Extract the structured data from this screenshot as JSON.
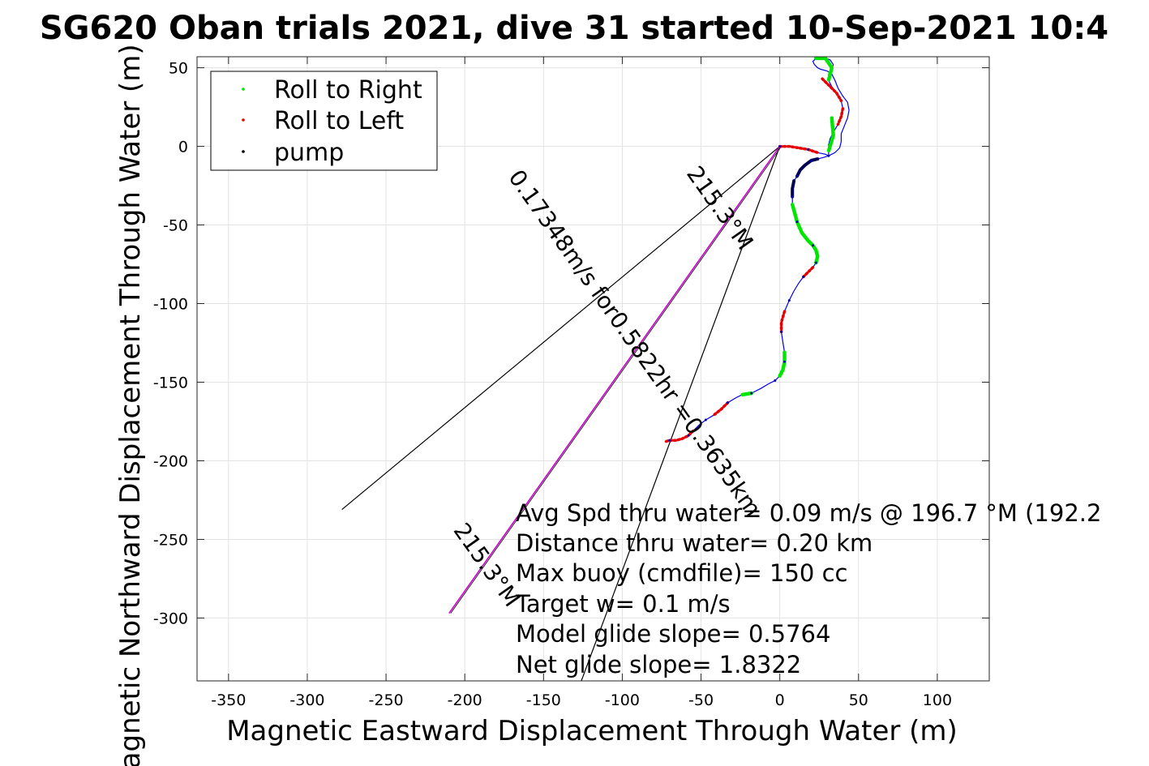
{
  "chart_data": {
    "type": "scatter",
    "title": "SG620 Oban trials 2021, dive 31 started 10-Sep-2021 10:4",
    "xlabel": "Magnetic Eastward Displacement Through Water (m)",
    "ylabel": "Magnetic Northward Displacement Through Water (m)",
    "xlim": [
      -370,
      133
    ],
    "ylim": [
      -340,
      57
    ],
    "xticks": [
      -350,
      -300,
      -250,
      -200,
      -150,
      -100,
      -50,
      0,
      50,
      100
    ],
    "yticks": [
      50,
      0,
      -50,
      -100,
      -150,
      -200,
      -250,
      -300
    ],
    "grid": true,
    "legend": {
      "placement": "top-left",
      "entries": [
        {
          "label": "Roll to Right",
          "color": "#00e600"
        },
        {
          "label": "Roll to Left",
          "color": "#e60000"
        },
        {
          "label": "pump",
          "color": "#000000"
        }
      ]
    },
    "track": [
      [
        0,
        0
      ],
      [
        6,
        0
      ],
      [
        12,
        -1
      ],
      [
        18,
        -2
      ],
      [
        24,
        -4
      ],
      [
        29,
        -5
      ],
      [
        31,
        -6
      ],
      [
        28,
        -7
      ],
      [
        24,
        -8
      ],
      [
        20,
        -9
      ],
      [
        16,
        -12
      ],
      [
        13,
        -15
      ],
      [
        11,
        -19
      ],
      [
        9,
        -22
      ],
      [
        8,
        -27
      ],
      [
        8,
        -32
      ],
      [
        8,
        -37
      ],
      [
        9,
        -42
      ],
      [
        11,
        -48
      ],
      [
        14,
        -55
      ],
      [
        18,
        -60
      ],
      [
        21,
        -63
      ],
      [
        23,
        -66
      ],
      [
        24,
        -70
      ],
      [
        23,
        -74
      ],
      [
        21,
        -77
      ],
      [
        18,
        -80
      ],
      [
        15,
        -83
      ],
      [
        12,
        -87
      ],
      [
        9,
        -92
      ],
      [
        6,
        -98
      ],
      [
        3,
        -105
      ],
      [
        1,
        -112
      ],
      [
        1,
        -118
      ],
      [
        2,
        -125
      ],
      [
        3,
        -131
      ],
      [
        3,
        -137
      ],
      [
        2,
        -142
      ],
      [
        0,
        -146
      ],
      [
        -3,
        -149
      ],
      [
        -7,
        -151
      ],
      [
        -12,
        -154
      ],
      [
        -18,
        -157
      ],
      [
        -24,
        -158
      ],
      [
        -28,
        -160
      ],
      [
        -33,
        -163
      ],
      [
        -37,
        -167
      ],
      [
        -42,
        -171
      ],
      [
        -47,
        -174
      ],
      [
        -51,
        -177
      ],
      [
        -55,
        -181
      ],
      [
        -58,
        -184
      ],
      [
        -62,
        -186
      ],
      [
        -66,
        -187
      ],
      [
        -70,
        -187
      ],
      [
        -73,
        -188
      ]
    ],
    "loop": [
      [
        31,
        -6
      ],
      [
        35,
        -4
      ],
      [
        38,
        -1
      ],
      [
        39,
        3
      ],
      [
        39,
        8
      ],
      [
        41,
        13
      ],
      [
        43,
        18
      ],
      [
        44,
        23
      ],
      [
        43,
        28
      ],
      [
        40,
        32
      ],
      [
        37,
        37
      ],
      [
        35,
        42
      ],
      [
        33,
        46
      ],
      [
        30,
        48
      ],
      [
        26,
        49
      ],
      [
        24,
        50
      ],
      [
        22,
        52
      ],
      [
        21,
        54
      ],
      [
        23,
        56
      ],
      [
        26,
        56
      ],
      [
        29,
        56
      ],
      [
        32,
        55
      ],
      [
        34,
        52
      ],
      [
        33,
        49
      ],
      [
        31,
        46
      ],
      [
        31,
        42
      ],
      [
        33,
        38
      ],
      [
        36,
        34
      ],
      [
        39,
        29
      ],
      [
        40,
        24
      ],
      [
        39,
        19
      ],
      [
        37,
        14
      ],
      [
        34,
        9
      ],
      [
        32,
        5
      ],
      [
        31,
        1
      ],
      [
        31,
        -6
      ]
    ],
    "roll_right_segments": [
      [
        [
          23,
          56
        ],
        [
          29,
          56
        ],
        [
          33,
          50
        ],
        [
          31,
          42
        ]
      ],
      [
        [
          33,
          18
        ],
        [
          34,
          7
        ],
        [
          31,
          -3
        ]
      ],
      [
        [
          8,
          -37
        ],
        [
          11,
          -48
        ],
        [
          14,
          -55
        ],
        [
          18,
          -60
        ],
        [
          21,
          -63
        ],
        [
          23,
          -66
        ],
        [
          24,
          -70
        ],
        [
          23,
          -74
        ]
      ],
      [
        [
          3,
          -131
        ],
        [
          3,
          -137
        ],
        [
          2,
          -142
        ],
        [
          0,
          -146
        ]
      ],
      [
        [
          -18,
          -157
        ],
        [
          -24,
          -158
        ]
      ]
    ],
    "roll_left_segments": [
      [
        [
          0,
          0
        ],
        [
          6,
          0
        ],
        [
          12,
          -1
        ],
        [
          18,
          -2
        ],
        [
          24,
          -4
        ]
      ],
      [
        [
          27,
          43
        ],
        [
          32,
          38
        ],
        [
          36,
          34
        ],
        [
          39,
          29
        ]
      ],
      [
        [
          40,
          24
        ],
        [
          39,
          19
        ],
        [
          37,
          14
        ]
      ],
      [
        [
          21,
          -77
        ],
        [
          18,
          -80
        ],
        [
          15,
          -83
        ]
      ],
      [
        [
          3,
          -105
        ],
        [
          1,
          -112
        ],
        [
          1,
          -118
        ]
      ],
      [
        [
          -33,
          -163
        ],
        [
          -37,
          -167
        ],
        [
          -42,
          -171
        ]
      ],
      [
        [
          -55,
          -181
        ],
        [
          -58,
          -184
        ],
        [
          -62,
          -186
        ],
        [
          -66,
          -187
        ],
        [
          -70,
          -187
        ],
        [
          -73,
          -188
        ]
      ]
    ],
    "pump_segments": [
      [
        [
          24,
          -8
        ],
        [
          20,
          -9
        ],
        [
          16,
          -12
        ],
        [
          13,
          -15
        ],
        [
          11,
          -19
        ]
      ],
      [
        [
          9,
          -22
        ],
        [
          8,
          -27
        ],
        [
          8,
          -32
        ]
      ]
    ],
    "course_line": {
      "from": [
        0,
        0
      ],
      "to": [
        -210,
        -297
      ],
      "color": "#cc00cc"
    },
    "cone_lines": [
      {
        "from": [
          0,
          0
        ],
        "to": [
          -278,
          -231
        ]
      },
      {
        "from": [
          0,
          0
        ],
        "to": [
          -126,
          -340
        ]
      }
    ],
    "rotated_labels": [
      {
        "text": "215.3°M",
        "at": [
          -42,
          -42
        ],
        "angle": 54.7
      },
      {
        "text": "0.17348m/s for0.5822hr =0.3635km",
        "at": [
          -96,
          -128
        ],
        "angle": 54.7
      },
      {
        "text": "215.3°M",
        "at": [
          -190,
          -269
        ],
        "angle": 54.7
      }
    ],
    "annotations": [
      "Avg Spd thru water=  0.09 m/s @ 196.7 °M (192.2",
      "Distance thru water=  0.20 km",
      "Max buoy (cmdfile)= 150 cc",
      "Target w= 0.1 m/s",
      "Model glide slope= 0.5764",
      "Net glide slope= 1.8322"
    ]
  }
}
